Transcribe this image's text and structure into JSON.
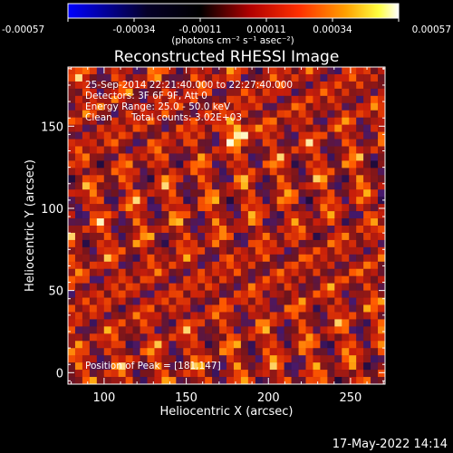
{
  "colors": {
    "background": "#000000",
    "text": "#ffffff"
  },
  "colorbar": {
    "palette": [
      "#0000ff",
      "#000000",
      "#ff0000",
      "#ffa000",
      "#ffff00",
      "#ffffff"
    ],
    "ticks": [
      "-0.00057",
      "-0.00034",
      "-0.00011",
      "0.00011",
      "0.00034",
      "0.00057"
    ],
    "unit_label": "(photons cm⁻² s⁻¹ asec⁻²)"
  },
  "chart_data": {
    "type": "heatmap",
    "title": "Reconstructed RHESSI Image",
    "xlabel": "Heliocentric X (arcsec)",
    "ylabel": "Heliocentric Y (arcsec)",
    "xlim": [
      78,
      271
    ],
    "ylim": [
      -7,
      186
    ],
    "xticks": [
      100,
      150,
      200,
      250
    ],
    "yticks": [
      0,
      50,
      100,
      150
    ],
    "peak_position": [
      181,
      147
    ],
    "value_range": [
      -0.00057,
      0.00057
    ]
  },
  "overlay": {
    "line1": "25-Sep-2014 22:21:40.000 to 22:27:40.000",
    "line2": "Detectors: 3F 6F 9F, Att 0",
    "line3": "Energy Range: 25.0 - 50.0 keV",
    "line4_left": "Clean",
    "line4_right": "Total counts: 3.02E+03",
    "peak_label": "Position of Peak = [181,147]"
  },
  "timestamp": "17-May-2022 14:14"
}
